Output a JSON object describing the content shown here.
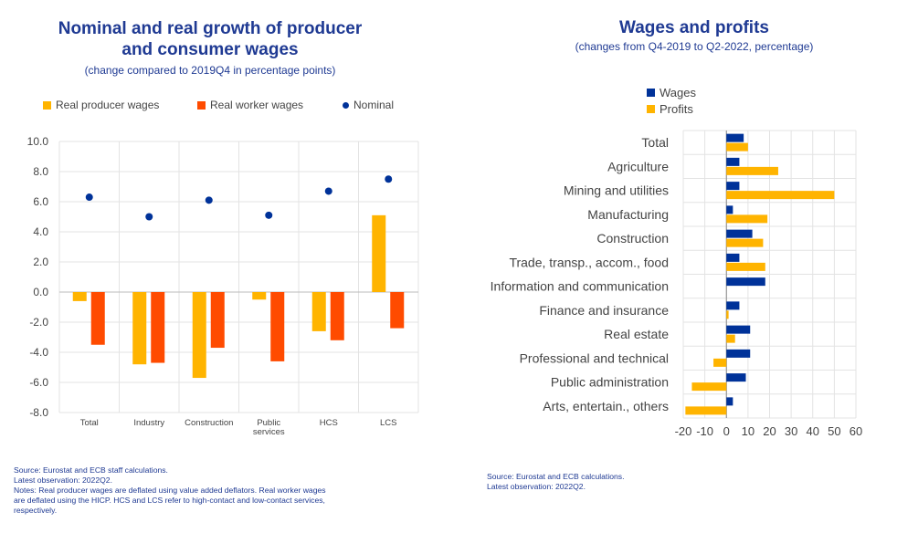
{
  "left": {
    "title_line1": "Nominal and real growth of producer",
    "title_line2": "and consumer wages",
    "subtitle": "(change compared to 2019Q4 in percentage points)",
    "legend": {
      "real_producer": "Real producer wages",
      "real_worker": "Real worker wages",
      "nominal": "Nominal"
    },
    "note_lines": [
      "Source: Eurostat and ECB staff calculations.",
      "Latest observation: 2022Q2.",
      "Notes: Real producer wages are deflated using value added deflators. Real worker wages",
      "are deflated using the HICP. HCS and LCS refer to high-contact and low-contact services,",
      "respectively."
    ]
  },
  "right": {
    "title": "Wages and profits",
    "subtitle": "(changes from Q4-2019 to Q2-2022, percentage)",
    "legend": {
      "wages": "Wages",
      "profits": "Profits"
    },
    "note_lines": [
      "Source: Eurostat and ECB calculations.",
      "Latest observation: 2022Q2."
    ]
  },
  "colors": {
    "title": "#1f3a93",
    "real_producer": "#ffb400",
    "real_worker": "#ff4b00",
    "nominal": "#003299",
    "wages": "#003299",
    "profits": "#ffb400"
  },
  "chart_data": [
    {
      "type": "bar",
      "categories": [
        "Total",
        "Industry",
        "Construction",
        "Public services",
        "HCS",
        "LCS"
      ],
      "category_labels": [
        [
          "Total"
        ],
        [
          "Industry"
        ],
        [
          "Construction"
        ],
        [
          "Public",
          "services"
        ],
        [
          "HCS"
        ],
        [
          "LCS"
        ]
      ],
      "series": [
        {
          "name": "Real producer wages",
          "values": [
            -0.6,
            -4.8,
            -5.7,
            -0.5,
            -2.6,
            5.1
          ]
        },
        {
          "name": "Real worker wages",
          "values": [
            -3.5,
            -4.7,
            -3.7,
            -4.6,
            -3.2,
            -2.4
          ]
        },
        {
          "name": "Nominal",
          "style": "dot",
          "values": [
            6.3,
            5.0,
            6.1,
            5.1,
            6.7,
            7.5
          ]
        }
      ],
      "ylim": [
        -8,
        10
      ],
      "yticks": [
        "10.0",
        "8.0",
        "6.0",
        "4.0",
        "2.0",
        "0.0",
        "-2.0",
        "-4.0",
        "-6.0",
        "-8.0"
      ],
      "ytick_values": [
        10,
        8,
        6,
        4,
        2,
        0,
        -2,
        -4,
        -6,
        -8
      ]
    },
    {
      "type": "bar",
      "orientation": "horizontal",
      "categories": [
        "Total",
        "Agriculture",
        "Mining and utilities",
        "Manufacturing",
        "Construction",
        "Trade, transp., accom., food",
        "Information and communication",
        "Finance and insurance",
        "Real estate",
        "Professional and technical",
        "Public administration",
        "Arts, entertain., others"
      ],
      "series": [
        {
          "name": "Wages",
          "values": [
            8,
            6,
            6,
            3,
            12,
            6,
            18,
            6,
            11,
            11,
            9,
            3
          ]
        },
        {
          "name": "Profits",
          "values": [
            10,
            24,
            50,
            19,
            17,
            18,
            0,
            1,
            4,
            -6,
            -16,
            -19
          ]
        }
      ],
      "xlim": [
        -20,
        60
      ],
      "xticks": [
        "-20",
        "-10",
        "0",
        "10",
        "20",
        "30",
        "40",
        "50",
        "60"
      ],
      "xtick_values": [
        -20,
        -10,
        0,
        10,
        20,
        30,
        40,
        50,
        60
      ]
    }
  ]
}
